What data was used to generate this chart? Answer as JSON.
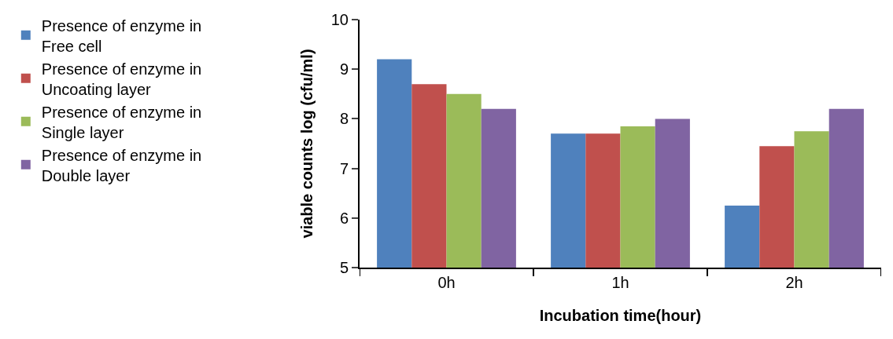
{
  "chart_data": {
    "type": "bar",
    "xlabel": "Incubation time(hour)",
    "ylabel": "viable counts log (cfu/ml)",
    "categories": [
      "0h",
      "1h",
      "2h"
    ],
    "series": [
      {
        "name": "Presence of enzyme in\nFree cell",
        "color": "#4f81bd",
        "values": [
          9.2,
          7.7,
          6.25
        ]
      },
      {
        "name": "Presence of enzyme in\nUncoating layer",
        "color": "#c0504d",
        "values": [
          8.7,
          7.7,
          7.45
        ]
      },
      {
        "name": "Presence of enzyme in\nSingle layer",
        "color": "#9bbb59",
        "values": [
          8.5,
          7.85,
          7.75
        ]
      },
      {
        "name": "Presence of enzyme in\nDouble layer",
        "color": "#8064a2",
        "values": [
          8.2,
          8.0,
          8.2
        ]
      }
    ],
    "ylim": [
      5,
      10
    ],
    "yticks": [
      5,
      6,
      7,
      8,
      9,
      10
    ],
    "grid": false,
    "legend": "left"
  }
}
